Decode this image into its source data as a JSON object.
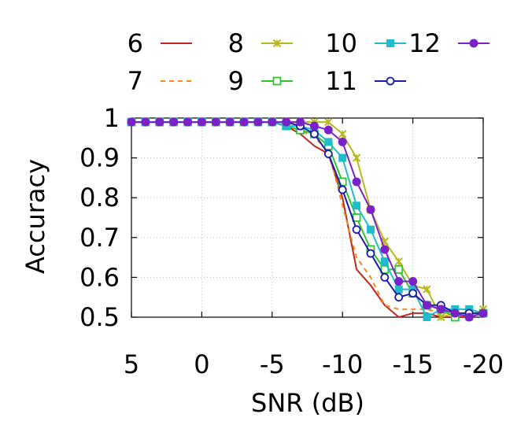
{
  "chart_data": {
    "type": "line",
    "xlabel": "SNR (dB)",
    "ylabel": "Accuracy",
    "xlim": [
      5,
      -20
    ],
    "ylim": [
      0.5,
      1
    ],
    "x_ticks": [
      "5",
      "0",
      "-5",
      "-10",
      "-15",
      "-20"
    ],
    "y_ticks": [
      "0.5",
      "0.6",
      "0.7",
      "0.8",
      "0.9",
      "1"
    ],
    "grid": true,
    "legend_position": "top",
    "x": [
      5,
      4,
      3,
      2,
      1,
      0,
      -1,
      -2,
      -3,
      -4,
      -5,
      -6,
      -7,
      -8,
      -9,
      -10,
      -11,
      -12,
      -13,
      -14,
      -15,
      -16,
      -17,
      -18,
      -19,
      -20
    ],
    "series": [
      {
        "name": "6",
        "color": "#c0271e",
        "dash": "solid",
        "marker": "none",
        "values": [
          0.99,
          0.99,
          0.99,
          0.99,
          0.99,
          0.99,
          0.99,
          0.99,
          0.99,
          0.99,
          0.99,
          0.98,
          0.96,
          0.93,
          0.91,
          0.8,
          0.62,
          0.58,
          0.53,
          0.5,
          0.51,
          0.51,
          0.5,
          0.5,
          0.5,
          0.51
        ]
      },
      {
        "name": "7",
        "color": "#f08c1c",
        "dash": "dashed",
        "marker": "none",
        "values": [
          0.99,
          0.99,
          0.99,
          0.99,
          0.99,
          0.99,
          0.99,
          0.99,
          0.99,
          0.99,
          0.99,
          0.98,
          0.97,
          0.95,
          0.92,
          0.78,
          0.65,
          0.6,
          0.53,
          0.52,
          0.52,
          0.52,
          0.51,
          0.51,
          0.51,
          0.51
        ]
      },
      {
        "name": "8",
        "color": "#b8b81e",
        "dash": "solid",
        "marker": "x",
        "values": [
          0.99,
          0.99,
          0.99,
          0.99,
          0.99,
          0.99,
          0.99,
          0.99,
          0.99,
          0.99,
          0.99,
          0.99,
          0.99,
          0.99,
          0.99,
          0.96,
          0.9,
          0.77,
          0.69,
          0.64,
          0.58,
          0.57,
          0.5,
          0.51,
          0.5,
          0.52
        ]
      },
      {
        "name": "9",
        "color": "#2ec42e",
        "dash": "solid",
        "marker": "square-open",
        "values": [
          0.99,
          0.99,
          0.99,
          0.99,
          0.99,
          0.99,
          0.99,
          0.99,
          0.99,
          0.99,
          0.99,
          0.98,
          0.97,
          0.96,
          0.93,
          0.84,
          0.75,
          0.67,
          0.62,
          0.62,
          0.56,
          0.53,
          0.52,
          0.5,
          0.51,
          0.51
        ]
      },
      {
        "name": "10",
        "color": "#1fbcc9",
        "dash": "solid",
        "marker": "square",
        "values": [
          0.99,
          0.99,
          0.99,
          0.99,
          0.99,
          0.99,
          0.99,
          0.99,
          0.99,
          0.99,
          0.99,
          0.98,
          0.98,
          0.97,
          0.94,
          0.9,
          0.78,
          0.72,
          0.64,
          0.57,
          0.57,
          0.5,
          0.52,
          0.52,
          0.52,
          0.51
        ]
      },
      {
        "name": "11",
        "color": "#1a1aab",
        "dash": "solid",
        "marker": "circle-open",
        "values": [
          0.99,
          0.99,
          0.99,
          0.99,
          0.99,
          0.99,
          0.99,
          0.99,
          0.99,
          0.99,
          0.99,
          0.99,
          0.98,
          0.96,
          0.91,
          0.82,
          0.72,
          0.66,
          0.6,
          0.55,
          0.56,
          0.53,
          0.53,
          0.51,
          0.51,
          0.51
        ]
      },
      {
        "name": "12",
        "color": "#7b22c7",
        "dash": "solid",
        "marker": "circle",
        "values": [
          0.99,
          0.99,
          0.99,
          0.99,
          0.99,
          0.99,
          0.99,
          0.99,
          0.99,
          0.99,
          0.99,
          0.99,
          0.99,
          0.98,
          0.97,
          0.94,
          0.84,
          0.77,
          0.67,
          0.59,
          0.59,
          0.53,
          0.52,
          0.51,
          0.5,
          0.51
        ]
      }
    ]
  }
}
